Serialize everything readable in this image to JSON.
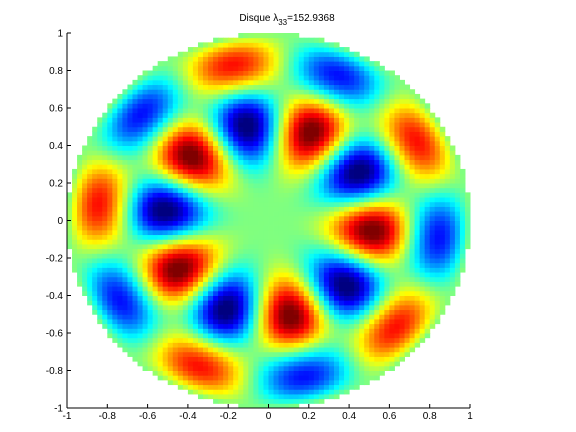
{
  "chart_data": {
    "type": "disk-field",
    "title": "Disque  λ",
    "title_subscript": "33",
    "eigenvalue": {
      "value": 152.9368,
      "label": "=152.9368"
    },
    "xlim": [
      -1,
      1
    ],
    "ylim": [
      -1,
      1
    ],
    "xticks": [
      -1,
      -0.8,
      -0.6,
      -0.4,
      -0.2,
      0,
      0.2,
      0.4,
      0.6,
      0.8,
      1
    ],
    "yticks": [
      -1,
      -0.8,
      -0.6,
      -0.4,
      -0.2,
      0,
      0.2,
      0.4,
      0.6,
      0.8,
      1
    ],
    "colormap": "jet"
  }
}
